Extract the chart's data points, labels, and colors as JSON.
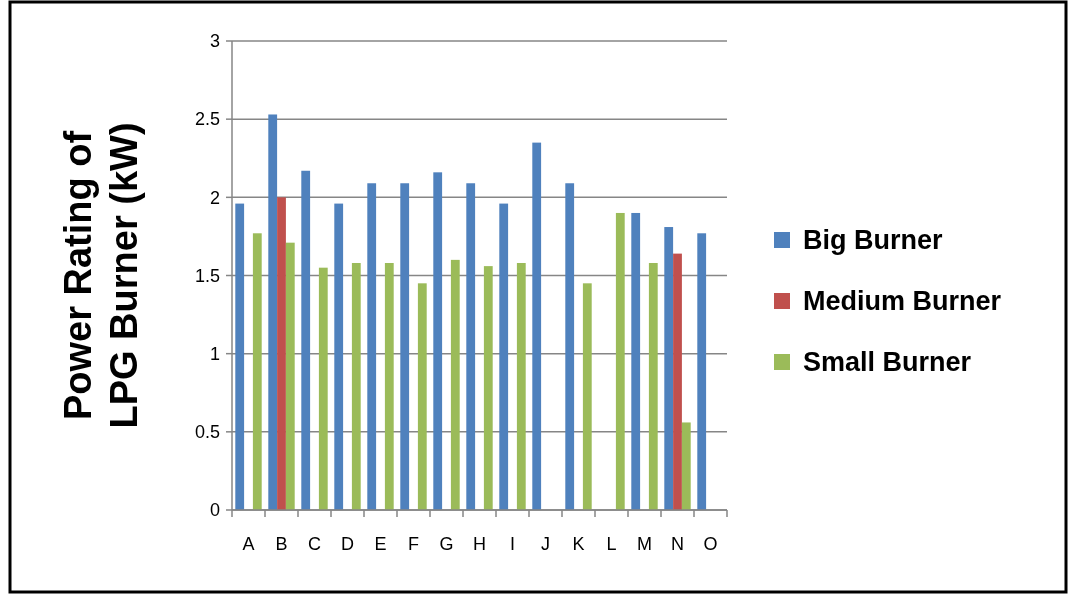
{
  "chart_data": {
    "type": "bar",
    "ylabel": "Power Rating of LPG Burner (kW)",
    "categories": [
      "A",
      "B",
      "C",
      "D",
      "E",
      "F",
      "G",
      "H",
      "I",
      "J",
      "K",
      "L",
      "M",
      "N",
      "O"
    ],
    "series": [
      {
        "name": "Big Burner",
        "color": "#4f81bd",
        "values": [
          1.96,
          2.53,
          2.17,
          1.96,
          2.09,
          2.09,
          2.16,
          2.09,
          1.96,
          2.35,
          2.09,
          null,
          1.9,
          1.81,
          1.77
        ]
      },
      {
        "name": "Medium Burner",
        "color": "#c0504d",
        "values": [
          null,
          2.0,
          null,
          null,
          null,
          null,
          null,
          null,
          null,
          null,
          null,
          null,
          null,
          1.64,
          null
        ]
      },
      {
        "name": "Small Burner",
        "color": "#9bbb59",
        "values": [
          1.77,
          1.71,
          1.55,
          1.58,
          1.58,
          1.45,
          1.6,
          1.56,
          1.58,
          null,
          1.45,
          1.9,
          1.58,
          0.56,
          null
        ]
      }
    ],
    "ylim": [
      0,
      3
    ],
    "yticks": [
      0,
      0.5,
      1,
      1.5,
      2,
      2.5,
      3
    ],
    "grid": "y",
    "legend": "right"
  }
}
